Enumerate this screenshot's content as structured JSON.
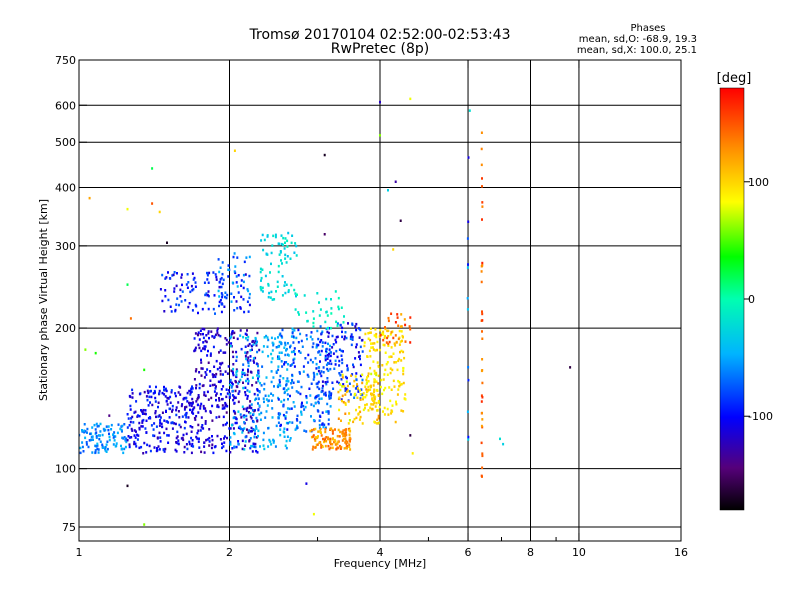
{
  "chart_data": {
    "type": "scatter",
    "title": "Tromsø 20170104 02:52:00-02:53:43",
    "subtitle": "RwPretec (8p)",
    "info": {
      "heading": "Phases",
      "line1": "mean, sd,O: -68.9, 19.3",
      "line2": "mean, sd,X: 100.0, 25.1"
    },
    "xlabel": "Frequency [MHz]",
    "ylabel": "Stationary phase Virtual Height [km]",
    "xscale": "log",
    "yscale": "log",
    "xlim": [
      1,
      16
    ],
    "ylim": [
      70,
      750
    ],
    "xticks": [
      1,
      2,
      4,
      6,
      8,
      10,
      16
    ],
    "xtick_labels": [
      "1",
      "2",
      "4",
      "6",
      "8",
      "10",
      "16"
    ],
    "x_minor_ticks": [
      3,
      5,
      7,
      9
    ],
    "yticks": [
      75,
      100,
      200,
      300,
      400,
      500,
      600,
      750
    ],
    "ytick_labels": [
      "75",
      "100",
      "200",
      "300",
      "400",
      "500",
      "600",
      "750"
    ],
    "grid": true,
    "colorbar": {
      "label": "[deg]",
      "range": [
        -180,
        180
      ],
      "ticks": [
        100,
        0,
        -100
      ],
      "tick_labels": [
        "100",
        "0",
        "-100"
      ]
    },
    "clusters": [
      {
        "f": [
          1.0,
          1.25
        ],
        "h": [
          108,
          125
        ],
        "phase": [
          -80,
          -40
        ],
        "n": 110
      },
      {
        "f": [
          1.25,
          1.7
        ],
        "h": [
          108,
          150
        ],
        "phase": [
          -130,
          -80
        ],
        "n": 260
      },
      {
        "f": [
          1.7,
          2.3
        ],
        "h": [
          108,
          200
        ],
        "phase": [
          -140,
          -90
        ],
        "n": 380
      },
      {
        "f": [
          2.0,
          2.7
        ],
        "h": [
          110,
          195
        ],
        "phase": [
          -70,
          -30
        ],
        "n": 220
      },
      {
        "f": [
          2.5,
          3.2
        ],
        "h": [
          120,
          200
        ],
        "phase": [
          -100,
          -40
        ],
        "n": 220
      },
      {
        "f": [
          3.0,
          3.7
        ],
        "h": [
          140,
          205
        ],
        "phase": [
          -120,
          -60
        ],
        "n": 150
      },
      {
        "f": [
          2.9,
          3.5
        ],
        "h": [
          110,
          122
        ],
        "phase": [
          100,
          150
        ],
        "n": 120
      },
      {
        "f": [
          3.3,
          4.0
        ],
        "h": [
          125,
          160
        ],
        "phase": [
          70,
          130
        ],
        "n": 90
      },
      {
        "f": [
          3.7,
          4.5
        ],
        "h": [
          130,
          200
        ],
        "phase": [
          80,
          110
        ],
        "n": 170
      },
      {
        "f": [
          4.0,
          4.6
        ],
        "h": [
          185,
          215
        ],
        "phase": [
          110,
          170
        ],
        "n": 30
      },
      {
        "f": [
          1.45,
          2.2
        ],
        "h": [
          215,
          265
        ],
        "phase": [
          -120,
          -70
        ],
        "n": 110
      },
      {
        "f": [
          1.9,
          2.2
        ],
        "h": [
          225,
          290
        ],
        "phase": [
          -90,
          -40
        ],
        "n": 40
      },
      {
        "f": [
          2.3,
          2.75
        ],
        "h": [
          230,
          320
        ],
        "phase": [
          -40,
          -10
        ],
        "n": 80
      },
      {
        "f": [
          2.7,
          3.4
        ],
        "h": [
          200,
          240
        ],
        "phase": [
          -20,
          0
        ],
        "n": 35
      }
    ],
    "columns": [
      {
        "f": 6.4,
        "h": [
          85,
          575
        ],
        "phase": [
          120,
          170
        ],
        "n": 38
      },
      {
        "f": 6.0,
        "h": [
          110,
          570
        ],
        "phase": [
          -120,
          -20
        ],
        "n": 12
      }
    ],
    "scatter_points": [
      {
        "x": 1.05,
        "y": 380,
        "phase": 120
      },
      {
        "x": 1.25,
        "y": 360,
        "phase": 80
      },
      {
        "x": 1.45,
        "y": 355,
        "phase": 100
      },
      {
        "x": 1.4,
        "y": 440,
        "phase": 20
      },
      {
        "x": 1.4,
        "y": 370,
        "phase": 150
      },
      {
        "x": 1.5,
        "y": 305,
        "phase": -170
      },
      {
        "x": 2.05,
        "y": 480,
        "phase": 100
      },
      {
        "x": 3.1,
        "y": 470,
        "phase": -170
      },
      {
        "x": 3.1,
        "y": 318,
        "phase": -150
      },
      {
        "x": 4.0,
        "y": 610,
        "phase": -120
      },
      {
        "x": 4.15,
        "y": 395,
        "phase": -30
      },
      {
        "x": 4.3,
        "y": 412,
        "phase": -130
      },
      {
        "x": 4.4,
        "y": 340,
        "phase": -160
      },
      {
        "x": 4.6,
        "y": 620,
        "phase": 80
      },
      {
        "x": 4.0,
        "y": 518,
        "phase": 60
      },
      {
        "x": 4.25,
        "y": 295,
        "phase": 100
      },
      {
        "x": 4.6,
        "y": 118,
        "phase": -160
      },
      {
        "x": 4.65,
        "y": 108,
        "phase": 90
      },
      {
        "x": 4.3,
        "y": 126,
        "phase": 110
      },
      {
        "x": 1.25,
        "y": 92,
        "phase": -170
      },
      {
        "x": 2.85,
        "y": 93,
        "phase": -110
      },
      {
        "x": 2.95,
        "y": 80,
        "phase": 80
      },
      {
        "x": 1.35,
        "y": 76,
        "phase": 60
      },
      {
        "x": 9.6,
        "y": 165,
        "phase": -160
      },
      {
        "x": 6.95,
        "y": 116,
        "phase": -20
      },
      {
        "x": 7.05,
        "y": 113,
        "phase": -30
      },
      {
        "x": 6.05,
        "y": 585,
        "phase": -20
      },
      {
        "x": 1.25,
        "y": 248,
        "phase": 20
      },
      {
        "x": 1.27,
        "y": 210,
        "phase": 140
      },
      {
        "x": 1.03,
        "y": 180,
        "phase": 60
      },
      {
        "x": 1.08,
        "y": 177,
        "phase": 40
      },
      {
        "x": 1.35,
        "y": 163,
        "phase": 40
      },
      {
        "x": 1.15,
        "y": 130,
        "phase": -140
      }
    ]
  }
}
